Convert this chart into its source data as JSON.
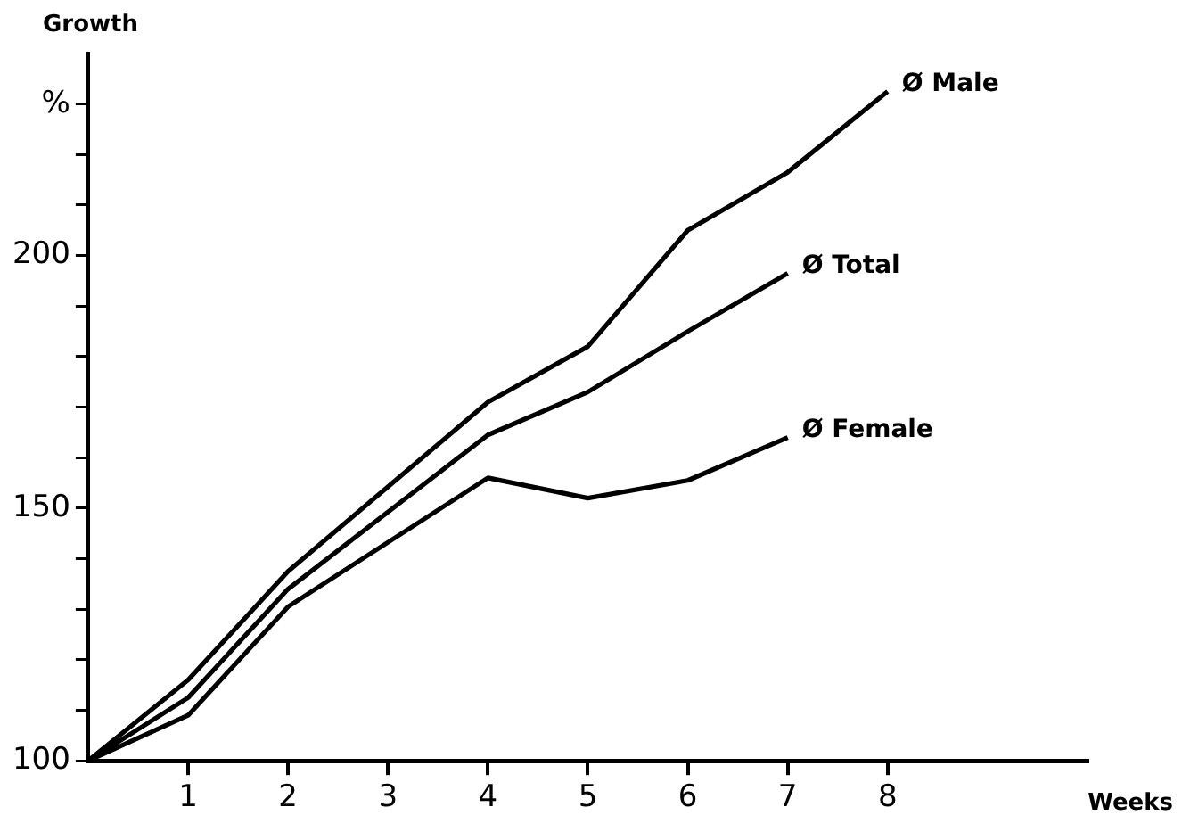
{
  "chart_data": {
    "type": "line",
    "xlabel": "Weeks",
    "ylabel": "Growth",
    "series": [
      {
        "name": "Ø Male",
        "color": "#000000",
        "x": [
          0,
          1,
          2,
          4,
          5,
          6,
          7,
          8
        ],
        "values": [
          100,
          116,
          137.5,
          171,
          182,
          205,
          216.5,
          232.5
        ]
      },
      {
        "name": "Ø Total",
        "color": "#000000",
        "x": [
          0,
          1,
          2,
          4,
          5,
          6,
          7
        ],
        "values": [
          100,
          112.5,
          134,
          164.5,
          173,
          185,
          196.5
        ]
      },
      {
        "name": "Ø Female",
        "color": "#000000",
        "x": [
          0,
          1,
          2,
          4,
          5,
          6,
          7
        ],
        "values": [
          100,
          109,
          130.5,
          156,
          152,
          155.5,
          164
        ]
      }
    ],
    "xlim": [
      0,
      10
    ],
    "xticks": [
      1,
      2,
      3,
      4,
      5,
      6,
      7,
      8
    ],
    "ylim": [
      100,
      240
    ],
    "yticks": [
      100,
      {
        "value": 110,
        "label": null
      },
      {
        "value": 120,
        "label": null
      },
      {
        "value": 130,
        "label": null
      },
      {
        "value": 140,
        "label": null
      },
      150,
      {
        "value": 160,
        "label": null
      },
      {
        "value": 170,
        "label": null
      },
      {
        "value": 180,
        "label": null
      },
      {
        "value": 190,
        "label": null
      },
      200,
      {
        "value": 210,
        "label": null
      },
      {
        "value": 220,
        "label": null
      },
      {
        "value": 230,
        "label": "%"
      }
    ],
    "grid": false,
    "legend": false,
    "marker": "none",
    "line_style": "solid"
  }
}
